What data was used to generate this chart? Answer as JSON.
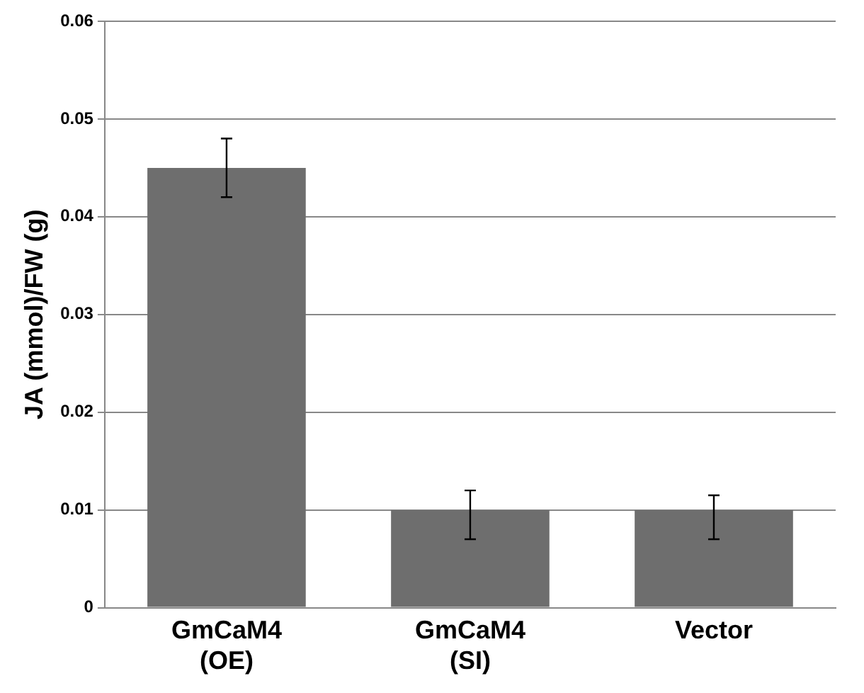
{
  "chart_data": {
    "type": "bar",
    "ylabel": "JA (mmol)/FW (g)",
    "categories": [
      "GmCaM4 (OE)",
      "GmCaM4 (SI)",
      "Vector"
    ],
    "values": [
      0.045,
      0.01,
      0.01
    ],
    "errors": [
      [
        0.042,
        0.048
      ],
      [
        0.007,
        0.012
      ],
      [
        0.007,
        0.0115
      ]
    ],
    "color": "#6e6e6e",
    "ylim": [
      0,
      0.06
    ],
    "yticks": [
      0,
      0.01,
      0.02,
      0.03,
      0.04,
      0.05,
      0.06
    ],
    "grid": "y",
    "legend": false
  }
}
